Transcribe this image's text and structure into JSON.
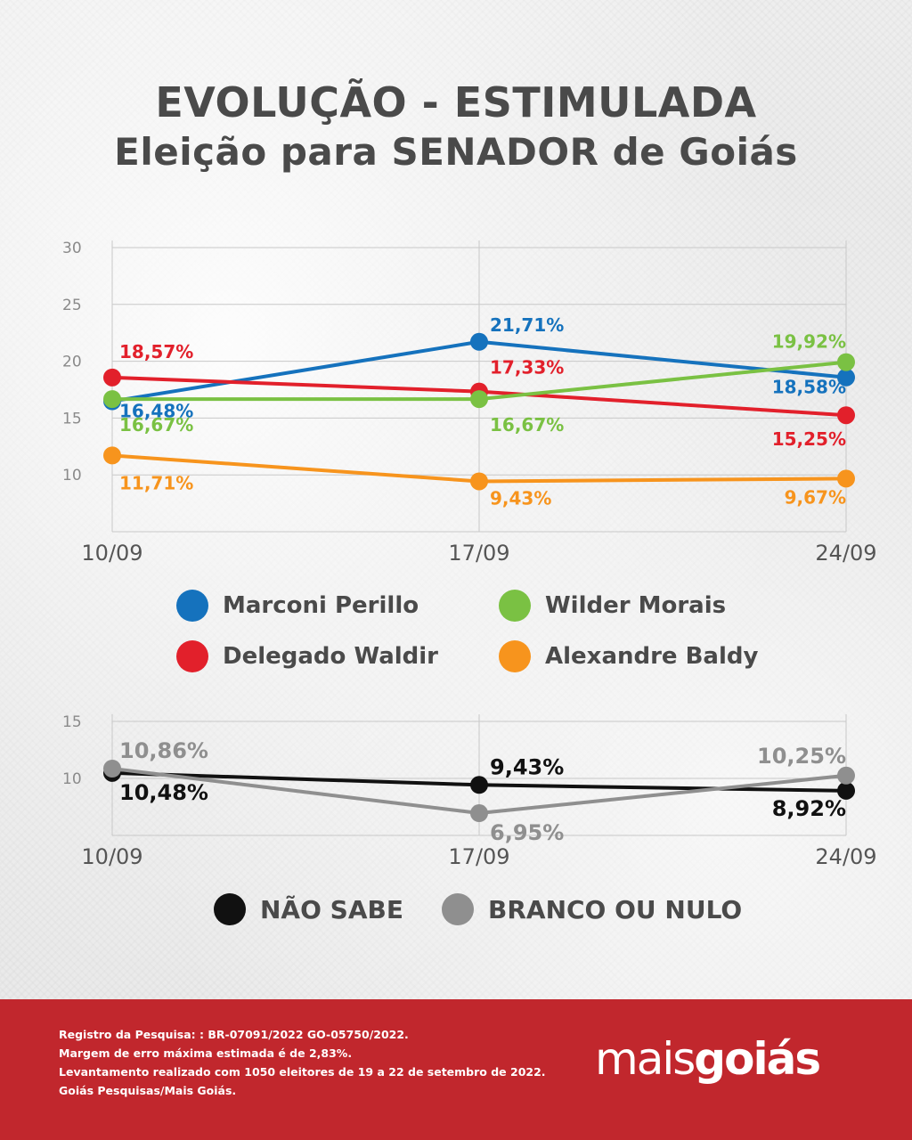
{
  "title": {
    "line1": "EVOLUÇÃO - ESTIMULADA",
    "line2": "Eleição para SENADOR de Goiás"
  },
  "chart_data": [
    {
      "type": "line",
      "x": [
        "10/09",
        "17/09",
        "24/09"
      ],
      "yticks": [
        "30",
        "25",
        "20",
        "15",
        "10"
      ],
      "ylim": [
        5,
        30
      ],
      "grid": true,
      "series": [
        {
          "name": "Marconi Perillo",
          "color": "#1572bd",
          "values": [
            16.48,
            21.71,
            18.58
          ],
          "labels": [
            "16,48%",
            "21,71%",
            "18,58%"
          ]
        },
        {
          "name": "Delegado Waldir",
          "color": "#e2202b",
          "values": [
            18.57,
            17.33,
            15.25
          ],
          "labels": [
            "18,57%",
            "17,33%",
            "15,25%"
          ]
        },
        {
          "name": "Wilder Morais",
          "color": "#7ac143",
          "values": [
            16.67,
            16.67,
            19.92
          ],
          "labels": [
            "16,67%",
            "16,67%",
            "19,92%"
          ]
        },
        {
          "name": "Alexandre Baldy",
          "color": "#f7941d",
          "values": [
            11.71,
            9.43,
            9.67
          ],
          "labels": [
            "11,71%",
            "9,43%",
            "9,67%"
          ]
        }
      ]
    },
    {
      "type": "line",
      "x": [
        "10/09",
        "17/09",
        "24/09"
      ],
      "yticks": [
        "15",
        "10"
      ],
      "ylim": [
        5,
        15
      ],
      "grid": true,
      "series": [
        {
          "name": "NÃO SABE",
          "color": "#111111",
          "values": [
            10.48,
            9.43,
            8.92
          ],
          "labels": [
            "10,48%",
            "9,43%",
            "8,92%"
          ]
        },
        {
          "name": "BRANCO OU NULO",
          "color": "#8f8f8f",
          "values": [
            10.86,
            6.95,
            10.25
          ],
          "labels": [
            "10,86%",
            "6,95%",
            "10,25%"
          ]
        }
      ]
    }
  ],
  "legend_main": [
    "Marconi Perillo",
    "Wilder Morais",
    "Delegado Waldir",
    "Alexandre Baldy"
  ],
  "legend_sub": [
    "NÃO SABE",
    "BRANCO OU NULO"
  ],
  "footer": {
    "line1": "Registro da Pesquisa: : BR-07091/2022 GO-05750/2022.",
    "line2": "Margem de erro máxima estimada é de 2,83%.",
    "line3": "Levantamento realizado com 1050 eleitores de 19 a 22 de setembro de 2022.",
    "line4": "Goiás Pesquisas/Mais Goiás.",
    "logo_part1": "mais",
    "logo_part2": "goiás"
  }
}
